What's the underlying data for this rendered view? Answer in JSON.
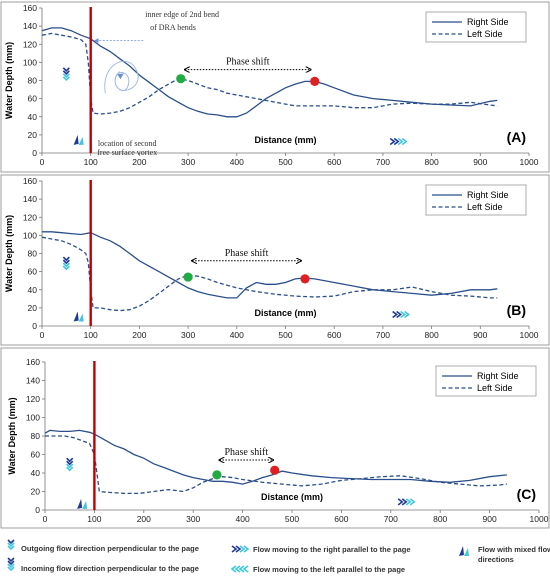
{
  "chart_data": [
    {
      "type": "line",
      "panel_label": "(A)",
      "xlabel": "Distance (mm)",
      "ylabel": "Water Depth (mm)",
      "xlim": [
        0,
        1000
      ],
      "ylim": [
        0,
        160
      ],
      "xticks": [
        0,
        100,
        200,
        300,
        400,
        500,
        600,
        700,
        800,
        900,
        1000
      ],
      "yticks": [
        0,
        20,
        40,
        60,
        80,
        100,
        120,
        140,
        160
      ],
      "grid": false,
      "legend": "top-right",
      "vline_x": 100,
      "annotation_text": [
        "inner edge of 2nd bend",
        "of DRA bends"
      ],
      "vortex_text": [
        "location of second",
        "free surface vortex"
      ],
      "phase_shift": {
        "label": "Phase shift",
        "x_start": 285,
        "x_end": 560,
        "y": 92
      },
      "markers": [
        {
          "color": "#22aa44",
          "x": 285,
          "y": 82
        },
        {
          "color": "#e02020",
          "x": 560,
          "y": 79
        }
      ],
      "series": [
        {
          "name": "Right Side",
          "style": "solid",
          "color": "#2b4f8c",
          "x": [
            0,
            20,
            40,
            60,
            80,
            100,
            120,
            140,
            160,
            180,
            200,
            220,
            240,
            260,
            280,
            300,
            320,
            340,
            360,
            380,
            400,
            420,
            440,
            460,
            480,
            500,
            520,
            540,
            560,
            580,
            600,
            640,
            680,
            720,
            760,
            800,
            840,
            880,
            920,
            935
          ],
          "y": [
            135,
            138,
            138,
            135,
            130,
            126,
            118,
            112,
            104,
            96,
            86,
            78,
            70,
            62,
            56,
            50,
            46,
            43,
            42,
            40,
            40,
            44,
            52,
            60,
            66,
            72,
            76,
            79,
            79,
            76,
            72,
            64,
            60,
            58,
            56,
            54,
            53,
            52,
            57,
            58
          ]
        },
        {
          "name": "Left Side",
          "style": "dashed",
          "color": "#2b4f8c",
          "x": [
            0,
            20,
            40,
            60,
            80,
            90,
            95,
            100,
            105,
            120,
            140,
            160,
            180,
            200,
            220,
            240,
            260,
            280,
            300,
            320,
            340,
            360,
            380,
            400,
            440,
            480,
            520,
            560,
            600,
            640,
            680,
            720,
            760,
            800,
            840,
            880,
            920,
            935
          ],
          "y": [
            130,
            132,
            130,
            128,
            125,
            120,
            100,
            60,
            44,
            43,
            44,
            46,
            50,
            56,
            62,
            70,
            76,
            82,
            80,
            76,
            72,
            70,
            66,
            64,
            60,
            56,
            52,
            52,
            52,
            50,
            50,
            54,
            55,
            54,
            54,
            56,
            53,
            52
          ]
        }
      ]
    },
    {
      "type": "line",
      "panel_label": "(B)",
      "xlabel": "Distance (mm)",
      "ylabel": "Water Depth (mm)",
      "xlim": [
        0,
        1000
      ],
      "ylim": [
        0,
        160
      ],
      "xticks": [
        0,
        100,
        200,
        300,
        400,
        500,
        600,
        700,
        800,
        900,
        1000
      ],
      "yticks": [
        0,
        20,
        40,
        60,
        80,
        100,
        120,
        140,
        160
      ],
      "grid": false,
      "legend": "top-right",
      "vline_x": 100,
      "phase_shift": {
        "label": "Phase shift",
        "x_start": 300,
        "x_end": 540,
        "y": 72
      },
      "markers": [
        {
          "color": "#22aa44",
          "x": 300,
          "y": 54
        },
        {
          "color": "#e02020",
          "x": 540,
          "y": 52
        }
      ],
      "series": [
        {
          "name": "Right Side",
          "style": "solid",
          "color": "#2b4f8c",
          "x": [
            0,
            20,
            40,
            60,
            80,
            100,
            120,
            140,
            160,
            180,
            200,
            220,
            240,
            260,
            280,
            300,
            320,
            340,
            360,
            380,
            400,
            420,
            440,
            460,
            480,
            500,
            520,
            540,
            560,
            600,
            640,
            680,
            720,
            760,
            800,
            840,
            880,
            920,
            935
          ],
          "y": [
            104,
            104,
            103,
            102,
            101,
            103,
            98,
            94,
            88,
            80,
            72,
            66,
            60,
            54,
            48,
            42,
            38,
            35,
            33,
            31,
            31,
            42,
            48,
            46,
            46,
            48,
            52,
            53,
            52,
            48,
            44,
            40,
            38,
            36,
            34,
            36,
            40,
            40,
            41
          ]
        },
        {
          "name": "Left Side",
          "style": "dashed",
          "color": "#2b4f8c",
          "x": [
            0,
            20,
            40,
            60,
            80,
            90,
            95,
            100,
            105,
            120,
            140,
            160,
            180,
            200,
            220,
            240,
            260,
            280,
            300,
            320,
            340,
            360,
            380,
            400,
            440,
            480,
            520,
            560,
            600,
            640,
            680,
            720,
            760,
            800,
            840,
            880,
            920,
            935
          ],
          "y": [
            98,
            96,
            94,
            90,
            84,
            80,
            70,
            40,
            20,
            20,
            18,
            17,
            18,
            22,
            28,
            36,
            44,
            52,
            56,
            55,
            52,
            48,
            45,
            42,
            38,
            35,
            33,
            32,
            33,
            38,
            40,
            40,
            43,
            38,
            34,
            33,
            31,
            31
          ]
        }
      ]
    },
    {
      "type": "line",
      "panel_label": "(C)",
      "xlabel": "Distance (mm)",
      "ylabel": "Water Depth (mm)",
      "xlim": [
        0,
        1000
      ],
      "ylim": [
        0,
        160
      ],
      "xticks": [
        0,
        100,
        200,
        300,
        400,
        500,
        600,
        700,
        800,
        900,
        1000
      ],
      "yticks": [
        0,
        20,
        40,
        60,
        80,
        100,
        120,
        140,
        160
      ],
      "grid": false,
      "legend": "top-right",
      "vline_x": 100,
      "phase_shift": {
        "label": "Phase shift",
        "x_start": 345,
        "x_end": 470,
        "y": 54
      },
      "markers": [
        {
          "color": "#22aa44",
          "x": 348,
          "y": 38
        },
        {
          "color": "#e02020",
          "x": 465,
          "y": 43
        }
      ],
      "series": [
        {
          "name": "Right Side",
          "style": "solid",
          "color": "#2b4f8c",
          "x": [
            0,
            10,
            30,
            50,
            70,
            90,
            100,
            120,
            140,
            160,
            180,
            200,
            220,
            240,
            260,
            280,
            300,
            320,
            340,
            360,
            380,
            400,
            420,
            440,
            460,
            480,
            500,
            540,
            580,
            620,
            660,
            700,
            740,
            780,
            820,
            860,
            900,
            935
          ],
          "y": [
            83,
            86,
            85,
            85,
            86,
            84,
            82,
            76,
            70,
            66,
            60,
            56,
            50,
            46,
            42,
            38,
            35,
            33,
            31,
            31,
            30,
            28,
            31,
            35,
            38,
            42,
            40,
            37,
            35,
            34,
            33,
            33,
            33,
            31,
            30,
            32,
            36,
            38
          ]
        },
        {
          "name": "Left Side",
          "style": "dashed",
          "color": "#2b4f8c",
          "x": [
            0,
            20,
            40,
            60,
            80,
            90,
            100,
            105,
            110,
            130,
            160,
            190,
            220,
            250,
            280,
            300,
            320,
            340,
            360,
            380,
            400,
            440,
            480,
            520,
            560,
            600,
            640,
            680,
            720,
            760,
            800,
            840,
            880,
            920,
            935
          ],
          "y": [
            80,
            80,
            80,
            78,
            74,
            72,
            60,
            40,
            20,
            19,
            18,
            18,
            20,
            22,
            20,
            24,
            30,
            34,
            36,
            35,
            33,
            30,
            28,
            26,
            28,
            32,
            34,
            36,
            37,
            34,
            30,
            28,
            26,
            27,
            28
          ]
        }
      ]
    }
  ],
  "legend_key": [
    {
      "text": "Outgoing flow direction perpendicular to the page",
      "icon": "outgoing-chevron-stack-icon"
    },
    {
      "text": "Incoming flow direction perpendicular to the page",
      "icon": "incoming-chevron-stack-icon"
    },
    {
      "text": "Flow moving to the right parallel to the page",
      "icon": "right-chevrons-icon"
    },
    {
      "text": "Flow moving to the left parallel to the page",
      "icon": "left-chevrons-icon"
    },
    {
      "text": [
        "Flow with mixed flow",
        "directions"
      ],
      "icon": "mixed-arrows-icon"
    }
  ],
  "colors": {
    "series": "#2b4f8c",
    "vline": "#c00000",
    "green_marker": "#22aa44",
    "red_marker": "#e02020",
    "icon_dark": "#1f3a93",
    "icon_light": "#3fc6e0"
  }
}
